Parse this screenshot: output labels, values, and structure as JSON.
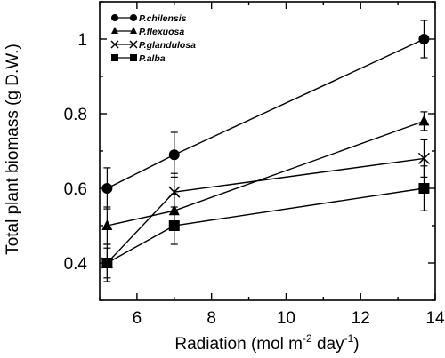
{
  "chart_data": {
    "type": "line",
    "xlabel": "Radiation (mol m",
    "xlabel_sup1": "-2",
    "xlabel_mid": " day",
    "xlabel_sup2": "-1",
    "xlabel_end": ")",
    "ylabel": "Total plant biomass (g D.W.)",
    "xlim": [
      5,
      14
    ],
    "ylim": [
      0.3,
      1.1
    ],
    "xticks": [
      6,
      8,
      10,
      12,
      14
    ],
    "yticks": [
      0.4,
      0.6,
      0.8,
      1.0
    ],
    "xtick_labels": [
      "6",
      "8",
      "10",
      "12",
      "14"
    ],
    "ytick_labels": [
      "0.4",
      "0.6",
      "0.8",
      "1"
    ],
    "grid": false,
    "legend_position": "top-left",
    "series": [
      {
        "name": "P.chilensis",
        "marker": "circle",
        "x": [
          5.2,
          7.0,
          13.7
        ],
        "y": [
          0.6,
          0.69,
          1.0
        ],
        "err": [
          0.055,
          0.06,
          0.05
        ]
      },
      {
        "name": "P.flexuosa",
        "marker": "triangle",
        "x": [
          5.2,
          7.0,
          13.7
        ],
        "y": [
          0.5,
          0.54,
          0.78
        ],
        "err": [
          0.05,
          0.045,
          0.025
        ]
      },
      {
        "name": "P.glandulosa",
        "marker": "x",
        "x": [
          5.2,
          7.0,
          13.7
        ],
        "y": [
          0.4,
          0.59,
          0.68
        ],
        "err": [
          0.05,
          0.05,
          0.05
        ]
      },
      {
        "name": "P.alba",
        "marker": "square",
        "x": [
          5.2,
          7.0,
          13.7
        ],
        "y": [
          0.4,
          0.5,
          0.6
        ],
        "err": [
          0.04,
          0.05,
          0.06
        ]
      }
    ]
  }
}
